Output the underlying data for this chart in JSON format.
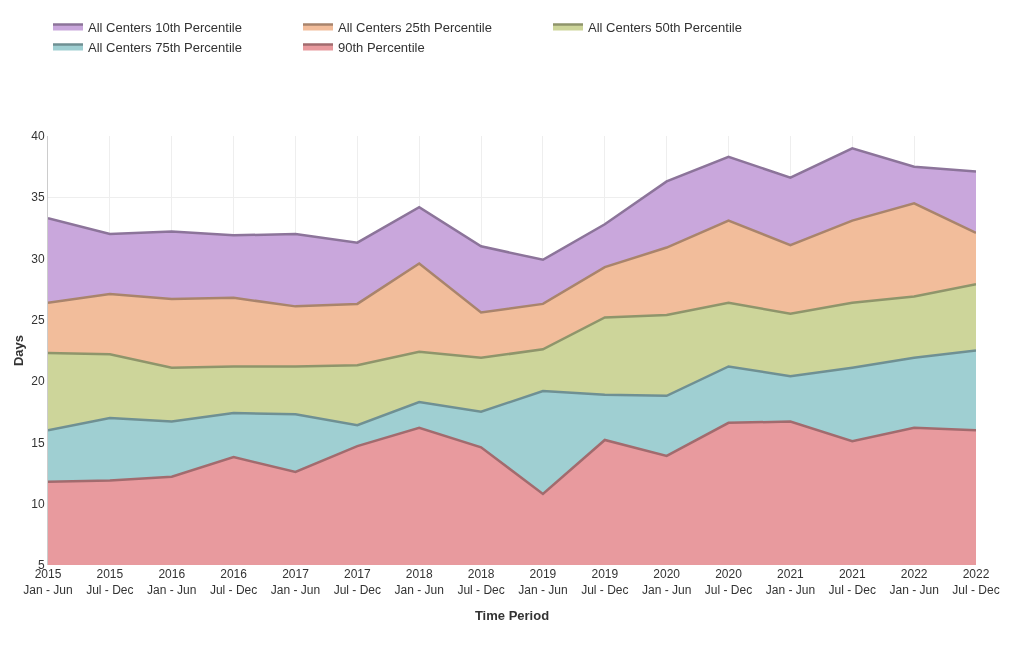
{
  "chart_data": {
    "type": "area",
    "xlabel": "Time Period",
    "ylabel": "Days",
    "categories": [
      "2015\nJan - Jun",
      "2015\nJul - Dec",
      "2016\nJan - Jun",
      "2016\nJul - Dec",
      "2017\nJan - Jun",
      "2017\nJul - Dec",
      "2018\nJan - Jun",
      "2018\nJul - Dec",
      "2019\nJan - Jun",
      "2019\nJul - Dec",
      "2020\nJan - Jun",
      "2020\nJul - Dec",
      "2021\nJan - Jun",
      "2021\nJul - Dec",
      "2022\nJan - Jun",
      "2022\nJul - Dec"
    ],
    "series": [
      {
        "name": "All Centers 10th Percentile",
        "color": "#c9a7dc",
        "values": [
          33.3,
          32.0,
          32.2,
          31.9,
          32.0,
          31.3,
          34.2,
          31.0,
          29.9,
          32.8,
          36.3,
          38.3,
          36.6,
          39.0,
          37.5,
          37.1
        ]
      },
      {
        "name": "All Centers 25th Percentile",
        "color": "#f2bd9b",
        "values": [
          26.4,
          27.1,
          26.7,
          26.8,
          26.1,
          26.3,
          29.6,
          25.6,
          26.3,
          29.3,
          30.9,
          33.1,
          31.1,
          33.1,
          34.5,
          32.1
        ]
      },
      {
        "name": "All Centers 50th Percentile",
        "color": "#cdd59a",
        "values": [
          22.3,
          22.2,
          21.1,
          21.2,
          21.2,
          21.3,
          22.4,
          21.9,
          22.6,
          25.2,
          25.4,
          26.4,
          25.5,
          26.4,
          26.9,
          27.9
        ]
      },
      {
        "name": "All Centers 75th Percentile",
        "color": "#9fcfd2",
        "values": [
          16.0,
          17.0,
          16.7,
          17.4,
          17.3,
          16.4,
          18.3,
          17.5,
          19.2,
          18.9,
          18.8,
          21.2,
          20.4,
          21.1,
          21.9,
          22.5
        ]
      },
      {
        "name": "90th Percentile",
        "color": "#e89a9e",
        "values": [
          11.8,
          11.9,
          12.2,
          13.8,
          12.6,
          14.7,
          16.2,
          14.6,
          10.8,
          15.2,
          13.9,
          16.6,
          16.7,
          15.1,
          16.2,
          16.0
        ]
      }
    ],
    "ylim": [
      5,
      40
    ],
    "yticks": [
      5,
      10,
      15,
      20,
      25,
      30,
      35,
      40
    ],
    "grid": true,
    "legend": "top left",
    "marker": "none"
  }
}
